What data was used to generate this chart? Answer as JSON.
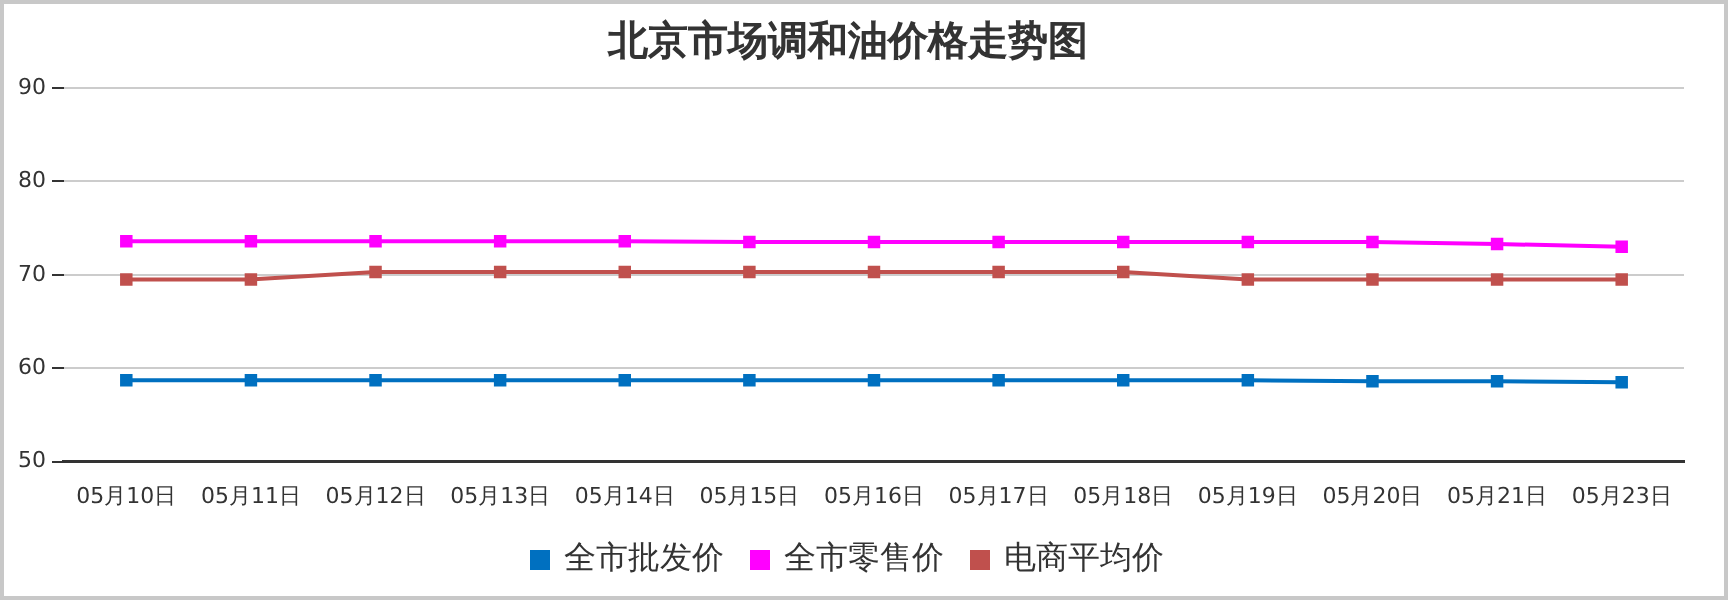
{
  "chart_data": {
    "type": "line",
    "title": "北京市场调和油价格走势图",
    "categories": [
      "05月10日",
      "05月11日",
      "05月12日",
      "05月13日",
      "05月14日",
      "05月15日",
      "05月16日",
      "05月17日",
      "05月18日",
      "05月19日",
      "05月20日",
      "05月21日",
      "05月23日"
    ],
    "series": [
      {
        "name": "全市批发价",
        "color": "#0070c0",
        "values": [
          58.7,
          58.7,
          58.7,
          58.7,
          58.7,
          58.7,
          58.7,
          58.7,
          58.7,
          58.7,
          58.6,
          58.6,
          58.5
        ]
      },
      {
        "name": "全市零售价",
        "color": "#ff00ff",
        "values": [
          73.6,
          73.6,
          73.6,
          73.6,
          73.6,
          73.5,
          73.5,
          73.5,
          73.5,
          73.5,
          73.5,
          73.3,
          73.0
        ]
      },
      {
        "name": "电商平均价",
        "color": "#c0504d",
        "values": [
          69.5,
          69.5,
          70.3,
          70.3,
          70.3,
          70.3,
          70.3,
          70.3,
          70.3,
          69.5,
          69.5,
          69.5,
          69.5
        ]
      }
    ],
    "ylim": [
      50,
      90
    ],
    "yticks": [
      50,
      60,
      70,
      80,
      90
    ],
    "grid": "y",
    "legend": "bottom",
    "marker": "square",
    "line_style": "solid"
  }
}
